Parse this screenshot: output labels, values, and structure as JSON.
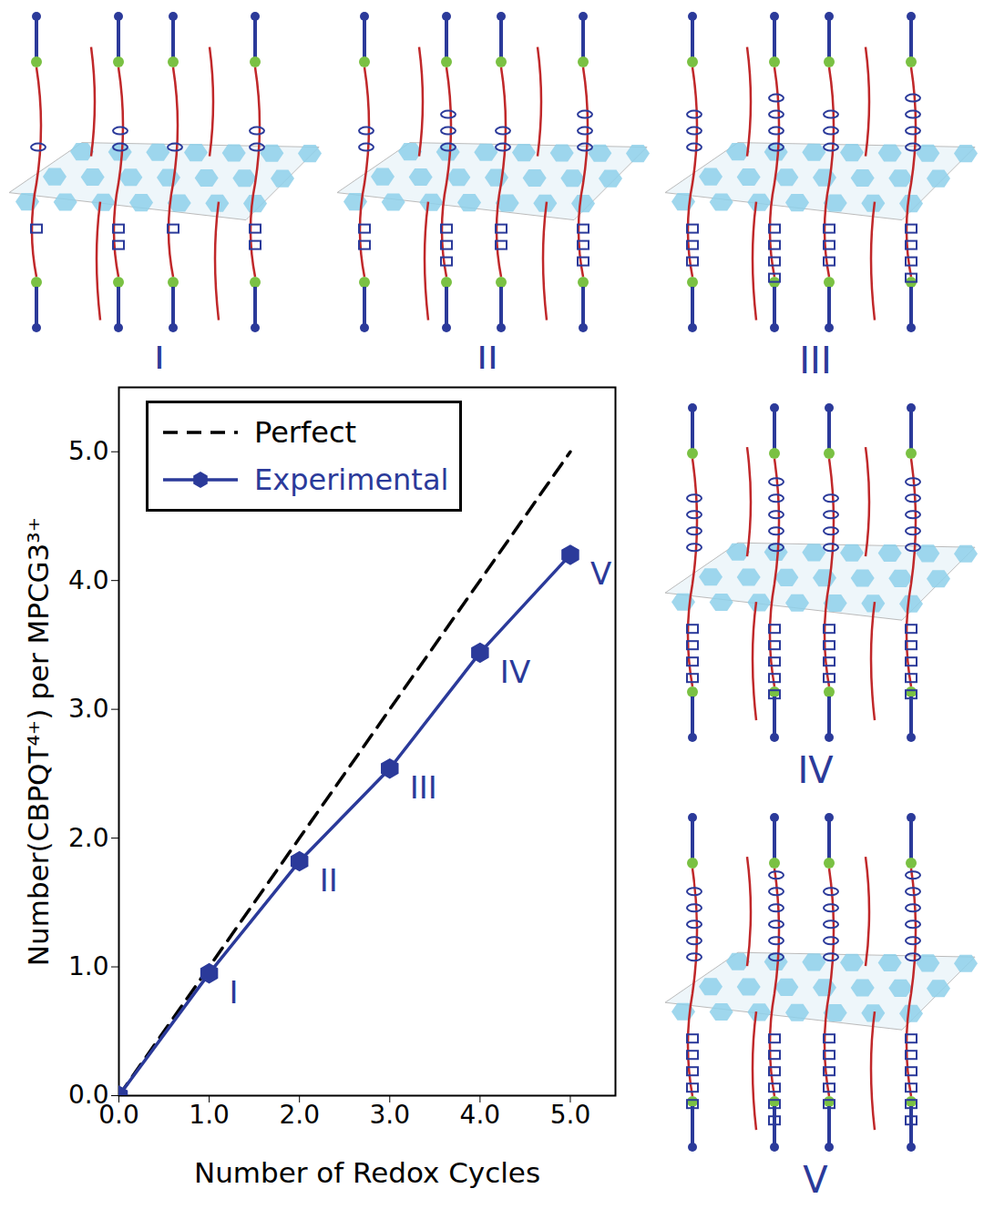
{
  "chart_data": {
    "type": "line",
    "x_label": "Number of Redox Cycles",
    "y_label": "Number(CBPQT⁴⁺) per MPCG3³⁺",
    "x": [
      0,
      1,
      2,
      3,
      4,
      5
    ],
    "series": [
      {
        "name": "Perfect",
        "color": "#000000",
        "line_style": "dashed",
        "values": [
          0,
          1,
          2,
          3,
          4,
          5
        ]
      },
      {
        "name": "Experimental",
        "color": "#2b3a9a",
        "marker": "hexagon",
        "line_style": "solid",
        "values": [
          0,
          0.95,
          1.82,
          2.54,
          3.44,
          4.2
        ]
      }
    ],
    "xlim": [
      0,
      5.5
    ],
    "ylim": [
      0,
      5.5
    ],
    "xticks": [
      0,
      1,
      2,
      3,
      4,
      5
    ],
    "yticks": [
      0,
      1,
      2,
      3,
      4,
      5
    ],
    "legend": "upper left",
    "grid": false,
    "annotations": [
      {
        "x": 1,
        "y": 0.95,
        "text": "I"
      },
      {
        "x": 2,
        "y": 1.82,
        "text": "II"
      },
      {
        "x": 3,
        "y": 2.54,
        "text": "III"
      },
      {
        "x": 4,
        "y": 3.44,
        "text": "IV"
      },
      {
        "x": 5,
        "y": 4.2,
        "text": "V"
      }
    ]
  },
  "illustrations": {
    "labels": [
      "I",
      "II",
      "III",
      "IV",
      "V"
    ]
  }
}
